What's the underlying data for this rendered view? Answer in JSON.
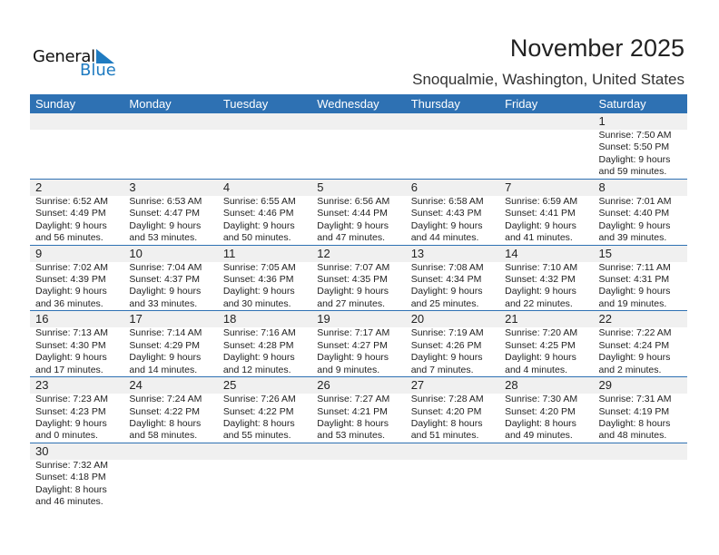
{
  "logo": {
    "line1": "General",
    "line2": "Blue",
    "accent": "#1f7bc1"
  },
  "title": "November 2025",
  "location": "Snoqualmie, Washington, United States",
  "colors": {
    "header": "#2e71b3",
    "band": "#f0f0f0"
  },
  "weekdays": [
    "Sunday",
    "Monday",
    "Tuesday",
    "Wednesday",
    "Thursday",
    "Friday",
    "Saturday"
  ],
  "weeks": [
    [
      null,
      null,
      null,
      null,
      null,
      null,
      {
        "day": "1",
        "sunrise": "Sunrise: 7:50 AM",
        "sunset": "Sunset: 5:50 PM",
        "daylight1": "Daylight: 9 hours",
        "daylight2": "and 59 minutes."
      }
    ],
    [
      {
        "day": "2",
        "sunrise": "Sunrise: 6:52 AM",
        "sunset": "Sunset: 4:49 PM",
        "daylight1": "Daylight: 9 hours",
        "daylight2": "and 56 minutes."
      },
      {
        "day": "3",
        "sunrise": "Sunrise: 6:53 AM",
        "sunset": "Sunset: 4:47 PM",
        "daylight1": "Daylight: 9 hours",
        "daylight2": "and 53 minutes."
      },
      {
        "day": "4",
        "sunrise": "Sunrise: 6:55 AM",
        "sunset": "Sunset: 4:46 PM",
        "daylight1": "Daylight: 9 hours",
        "daylight2": "and 50 minutes."
      },
      {
        "day": "5",
        "sunrise": "Sunrise: 6:56 AM",
        "sunset": "Sunset: 4:44 PM",
        "daylight1": "Daylight: 9 hours",
        "daylight2": "and 47 minutes."
      },
      {
        "day": "6",
        "sunrise": "Sunrise: 6:58 AM",
        "sunset": "Sunset: 4:43 PM",
        "daylight1": "Daylight: 9 hours",
        "daylight2": "and 44 minutes."
      },
      {
        "day": "7",
        "sunrise": "Sunrise: 6:59 AM",
        "sunset": "Sunset: 4:41 PM",
        "daylight1": "Daylight: 9 hours",
        "daylight2": "and 41 minutes."
      },
      {
        "day": "8",
        "sunrise": "Sunrise: 7:01 AM",
        "sunset": "Sunset: 4:40 PM",
        "daylight1": "Daylight: 9 hours",
        "daylight2": "and 39 minutes."
      }
    ],
    [
      {
        "day": "9",
        "sunrise": "Sunrise: 7:02 AM",
        "sunset": "Sunset: 4:39 PM",
        "daylight1": "Daylight: 9 hours",
        "daylight2": "and 36 minutes."
      },
      {
        "day": "10",
        "sunrise": "Sunrise: 7:04 AM",
        "sunset": "Sunset: 4:37 PM",
        "daylight1": "Daylight: 9 hours",
        "daylight2": "and 33 minutes."
      },
      {
        "day": "11",
        "sunrise": "Sunrise: 7:05 AM",
        "sunset": "Sunset: 4:36 PM",
        "daylight1": "Daylight: 9 hours",
        "daylight2": "and 30 minutes."
      },
      {
        "day": "12",
        "sunrise": "Sunrise: 7:07 AM",
        "sunset": "Sunset: 4:35 PM",
        "daylight1": "Daylight: 9 hours",
        "daylight2": "and 27 minutes."
      },
      {
        "day": "13",
        "sunrise": "Sunrise: 7:08 AM",
        "sunset": "Sunset: 4:34 PM",
        "daylight1": "Daylight: 9 hours",
        "daylight2": "and 25 minutes."
      },
      {
        "day": "14",
        "sunrise": "Sunrise: 7:10 AM",
        "sunset": "Sunset: 4:32 PM",
        "daylight1": "Daylight: 9 hours",
        "daylight2": "and 22 minutes."
      },
      {
        "day": "15",
        "sunrise": "Sunrise: 7:11 AM",
        "sunset": "Sunset: 4:31 PM",
        "daylight1": "Daylight: 9 hours",
        "daylight2": "and 19 minutes."
      }
    ],
    [
      {
        "day": "16",
        "sunrise": "Sunrise: 7:13 AM",
        "sunset": "Sunset: 4:30 PM",
        "daylight1": "Daylight: 9 hours",
        "daylight2": "and 17 minutes."
      },
      {
        "day": "17",
        "sunrise": "Sunrise: 7:14 AM",
        "sunset": "Sunset: 4:29 PM",
        "daylight1": "Daylight: 9 hours",
        "daylight2": "and 14 minutes."
      },
      {
        "day": "18",
        "sunrise": "Sunrise: 7:16 AM",
        "sunset": "Sunset: 4:28 PM",
        "daylight1": "Daylight: 9 hours",
        "daylight2": "and 12 minutes."
      },
      {
        "day": "19",
        "sunrise": "Sunrise: 7:17 AM",
        "sunset": "Sunset: 4:27 PM",
        "daylight1": "Daylight: 9 hours",
        "daylight2": "and 9 minutes."
      },
      {
        "day": "20",
        "sunrise": "Sunrise: 7:19 AM",
        "sunset": "Sunset: 4:26 PM",
        "daylight1": "Daylight: 9 hours",
        "daylight2": "and 7 minutes."
      },
      {
        "day": "21",
        "sunrise": "Sunrise: 7:20 AM",
        "sunset": "Sunset: 4:25 PM",
        "daylight1": "Daylight: 9 hours",
        "daylight2": "and 4 minutes."
      },
      {
        "day": "22",
        "sunrise": "Sunrise: 7:22 AM",
        "sunset": "Sunset: 4:24 PM",
        "daylight1": "Daylight: 9 hours",
        "daylight2": "and 2 minutes."
      }
    ],
    [
      {
        "day": "23",
        "sunrise": "Sunrise: 7:23 AM",
        "sunset": "Sunset: 4:23 PM",
        "daylight1": "Daylight: 9 hours",
        "daylight2": "and 0 minutes."
      },
      {
        "day": "24",
        "sunrise": "Sunrise: 7:24 AM",
        "sunset": "Sunset: 4:22 PM",
        "daylight1": "Daylight: 8 hours",
        "daylight2": "and 58 minutes."
      },
      {
        "day": "25",
        "sunrise": "Sunrise: 7:26 AM",
        "sunset": "Sunset: 4:22 PM",
        "daylight1": "Daylight: 8 hours",
        "daylight2": "and 55 minutes."
      },
      {
        "day": "26",
        "sunrise": "Sunrise: 7:27 AM",
        "sunset": "Sunset: 4:21 PM",
        "daylight1": "Daylight: 8 hours",
        "daylight2": "and 53 minutes."
      },
      {
        "day": "27",
        "sunrise": "Sunrise: 7:28 AM",
        "sunset": "Sunset: 4:20 PM",
        "daylight1": "Daylight: 8 hours",
        "daylight2": "and 51 minutes."
      },
      {
        "day": "28",
        "sunrise": "Sunrise: 7:30 AM",
        "sunset": "Sunset: 4:20 PM",
        "daylight1": "Daylight: 8 hours",
        "daylight2": "and 49 minutes."
      },
      {
        "day": "29",
        "sunrise": "Sunrise: 7:31 AM",
        "sunset": "Sunset: 4:19 PM",
        "daylight1": "Daylight: 8 hours",
        "daylight2": "and 48 minutes."
      }
    ],
    [
      {
        "day": "30",
        "sunrise": "Sunrise: 7:32 AM",
        "sunset": "Sunset: 4:18 PM",
        "daylight1": "Daylight: 8 hours",
        "daylight2": "and 46 minutes."
      },
      null,
      null,
      null,
      null,
      null,
      null
    ]
  ]
}
